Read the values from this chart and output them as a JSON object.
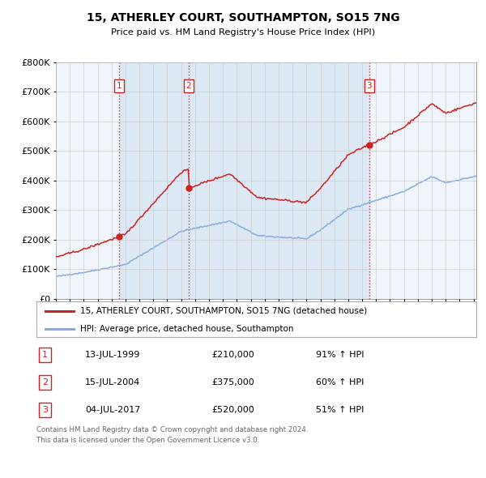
{
  "title": "15, ATHERLEY COURT, SOUTHAMPTON, SO15 7NG",
  "subtitle": "Price paid vs. HM Land Registry's House Price Index (HPI)",
  "legend_label_red": "15, ATHERLEY COURT, SOUTHAMPTON, SO15 7NG (detached house)",
  "legend_label_blue": "HPI: Average price, detached house, Southampton",
  "footer_line1": "Contains HM Land Registry data © Crown copyright and database right 2024.",
  "footer_line2": "This data is licensed under the Open Government Licence v3.0.",
  "purchases": [
    {
      "num": 1,
      "date": "13-JUL-1999",
      "price": "£210,000",
      "hpi": "91% ↑ HPI",
      "year": 1999.54,
      "value": 210000
    },
    {
      "num": 2,
      "date": "15-JUL-2004",
      "price": "£375,000",
      "hpi": "60% ↑ HPI",
      "year": 2004.54,
      "value": 375000
    },
    {
      "num": 3,
      "date": "04-JUL-2017",
      "price": "£520,000",
      "hpi": "51% ↑ HPI",
      "year": 2017.51,
      "value": 520000
    }
  ],
  "ylim": [
    0,
    800000
  ],
  "xlim_start": 1995.0,
  "xlim_end": 2025.2,
  "red_color": "#cc2222",
  "blue_color": "#88aadd",
  "shade_color": "#dde8f5",
  "marker_dot_color": "#cc2222",
  "grid_color": "#cccccc",
  "background_color": "#ffffff",
  "chart_bg_color": "#f0f4fb"
}
